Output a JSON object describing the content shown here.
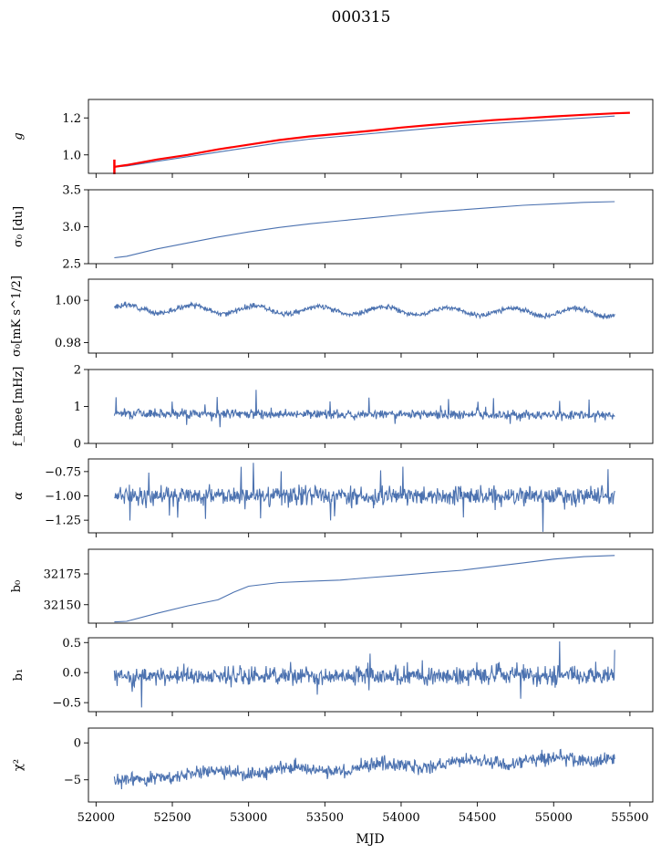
{
  "title": "000315",
  "colors": {
    "series": "#4c72b0",
    "fit": "#ff0000",
    "axis": "#000000"
  },
  "chart_data": {
    "type": "line",
    "title": "000315",
    "xlabel": "MJD",
    "xlim": [
      51950,
      55650
    ],
    "xticks": [
      52000,
      52500,
      53000,
      53500,
      54000,
      54500,
      55000,
      55500
    ],
    "xticklabels": [
      "52000",
      "52500",
      "53000",
      "53500",
      "54000",
      "54500",
      "55000",
      "55500"
    ],
    "x_start": 52120,
    "x_end": 55400,
    "panels": [
      {
        "name": "g",
        "ylabel": "g",
        "ylim": [
          0.9,
          1.3
        ],
        "yticks": [
          1.0,
          1.2
        ],
        "yticklabels": [
          "1.0",
          "1.2"
        ],
        "series": [
          {
            "kind": "trend",
            "color": "#4c72b0",
            "x": [
              52120,
              52200,
              52400,
              52600,
              52800,
              53000,
              53200,
              53400,
              53600,
              53800,
              54000,
              54200,
              54400,
              54600,
              54800,
              55000,
              55200,
              55400
            ],
            "y": [
              0.935,
              0.94,
              0.965,
              0.99,
              1.015,
              1.04,
              1.065,
              1.085,
              1.1,
              1.115,
              1.13,
              1.145,
              1.16,
              1.17,
              1.18,
              1.19,
              1.2,
              1.21
            ]
          },
          {
            "kind": "fit",
            "color": "#ff0000",
            "x": [
              52120,
              52200,
              52400,
              52600,
              52800,
              53000,
              53200,
              53400,
              53600,
              53800,
              54000,
              54200,
              54400,
              54600,
              54800,
              55000,
              55200,
              55400,
              55500
            ],
            "y": [
              0.935,
              0.945,
              0.975,
              1.0,
              1.03,
              1.055,
              1.08,
              1.1,
              1.115,
              1.13,
              1.148,
              1.162,
              1.175,
              1.188,
              1.198,
              1.208,
              1.217,
              1.225,
              1.228
            ]
          }
        ]
      },
      {
        "name": "sigma0-du",
        "ylabel": "σ₀ [du]",
        "ylim": [
          2.5,
          3.5
        ],
        "yticks": [
          2.5,
          3.0,
          3.5
        ],
        "yticklabels": [
          "2.5",
          "3.0",
          "3.5"
        ],
        "series": [
          {
            "kind": "trend",
            "color": "#4c72b0",
            "x": [
              52120,
              52200,
              52400,
              52600,
              52800,
              53000,
              53200,
              53400,
              53600,
              53800,
              54000,
              54200,
              54400,
              54600,
              54800,
              55000,
              55200,
              55400
            ],
            "y": [
              2.58,
              2.6,
              2.7,
              2.78,
              2.86,
              2.93,
              2.99,
              3.04,
              3.08,
              3.12,
              3.16,
              3.2,
              3.23,
              3.26,
              3.29,
              3.31,
              3.33,
              3.34
            ]
          }
        ]
      },
      {
        "name": "sigma0-mk",
        "ylabel": "σ₀[mK s^1/2]",
        "ylim": [
          0.975,
          1.01
        ],
        "yticks": [
          0.98,
          1.0
        ],
        "yticklabels": [
          "0.98",
          "1.00"
        ],
        "series": [
          {
            "kind": "wavy",
            "color": "#4c72b0",
            "base": 0.996,
            "slope": -0.0018,
            "wave": 0.0018,
            "period": 420,
            "noise": 0.0009,
            "seed": 3
          }
        ]
      },
      {
        "name": "fknee",
        "ylabel": "f_knee [mHz]",
        "ylim": [
          0,
          2
        ],
        "yticks": [
          0,
          1,
          2
        ],
        "yticklabels": [
          "0",
          "1",
          "2"
        ],
        "series": [
          {
            "kind": "noise",
            "color": "#4c72b0",
            "base": 0.82,
            "slope": -0.06,
            "noise": 0.09,
            "spike": 0.45,
            "seed": 7,
            "spikes": [
              [
                52130,
                1.25
              ],
              [
                53050,
                1.45
              ],
              [
                54310,
                1.2
              ],
              [
                55040,
                1.15
              ]
            ]
          }
        ]
      },
      {
        "name": "alpha",
        "ylabel": "α",
        "ylim": [
          -1.38,
          -0.62
        ],
        "yticks": [
          -1.25,
          -1.0,
          -0.75
        ],
        "yticklabels": [
          "−1.25",
          "−1.00",
          "−0.75"
        ],
        "series": [
          {
            "kind": "noise",
            "color": "#4c72b0",
            "base": -1.0,
            "slope": 0.0,
            "noise": 0.07,
            "spike": 0.28,
            "seed": 11,
            "spikes": [
              [
                53030,
                -0.66
              ],
              [
                54930,
                -1.37
              ],
              [
                54010,
                -0.7
              ]
            ]
          }
        ]
      },
      {
        "name": "b0",
        "ylabel": "b₀",
        "ylim": [
          32135,
          32195
        ],
        "yticks": [
          32150,
          32175
        ],
        "yticklabels": [
          "32150",
          "32175"
        ],
        "series": [
          {
            "kind": "trend",
            "color": "#4c72b0",
            "x": [
              52120,
              52200,
              52400,
              52600,
              52800,
              52900,
              53000,
              53200,
              53400,
              53600,
              53800,
              54000,
              54200,
              54400,
              54600,
              54800,
              55000,
              55200,
              55400
            ],
            "y": [
              32136,
              32136.5,
              32143,
              32149,
              32154,
              32160,
              32165,
              32168,
              32169,
              32170,
              32172,
              32174,
              32176,
              32178,
              32181,
              32184,
              32187,
              32189,
              32190
            ]
          }
        ]
      },
      {
        "name": "b1",
        "ylabel": "b₁",
        "ylim": [
          -0.65,
          0.58
        ],
        "yticks": [
          -0.5,
          0.0,
          0.5
        ],
        "yticklabels": [
          "−0.5",
          "0.0",
          "0.5"
        ],
        "series": [
          {
            "kind": "noise",
            "color": "#4c72b0",
            "base": -0.05,
            "slope": 0.0,
            "noise": 0.11,
            "spike": 0.35,
            "seed": 19,
            "spikes": [
              [
                55040,
                0.52
              ],
              [
                52300,
                -0.58
              ],
              [
                55400,
                0.38
              ]
            ]
          }
        ]
      },
      {
        "name": "chi2",
        "ylabel": "χ²",
        "ylim": [
          -8,
          2
        ],
        "yticks": [
          -5,
          0
        ],
        "yticklabels": [
          "−5",
          "0"
        ],
        "series": [
          {
            "kind": "chi",
            "color": "#4c72b0",
            "noise": 0.7,
            "seed": 23
          }
        ]
      }
    ]
  }
}
